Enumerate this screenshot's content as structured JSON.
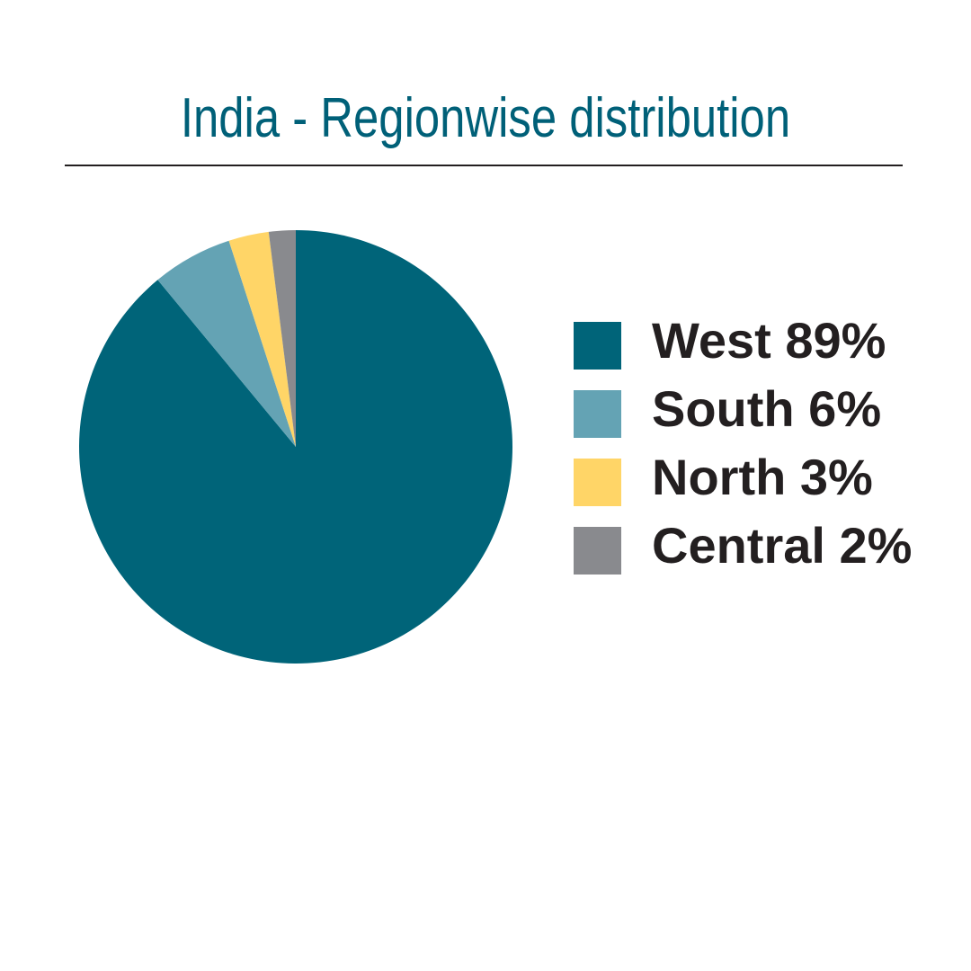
{
  "chart_data": {
    "type": "pie",
    "title": "India - Regionwise distribution",
    "legend_position": "right",
    "start_angle": "top",
    "direction": "clockwise",
    "slices": [
      {
        "label": "West 89%",
        "name": "West",
        "value": 89,
        "color": "#006479"
      },
      {
        "label": "South 6%",
        "name": "South",
        "value": 6,
        "color": "#64a3b4"
      },
      {
        "label": "North 3%",
        "name": "North",
        "value": 3,
        "color": "#ffd567"
      },
      {
        "label": "Central 2%",
        "name": "Central",
        "value": 2,
        "color": "#898a8e"
      }
    ]
  }
}
